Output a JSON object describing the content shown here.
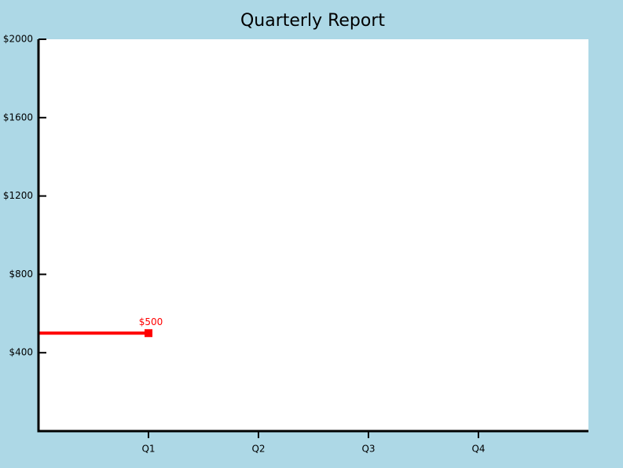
{
  "chart_data": {
    "type": "line",
    "title": "Quarterly Report",
    "categories": [
      null,
      "Q1",
      "Q2",
      "Q3",
      "Q4"
    ],
    "series": [
      {
        "color": "#ff0000",
        "values": [
          500,
          500,
          null,
          null,
          null
        ],
        "value_labels": [
          null,
          "$500",
          null,
          null,
          null
        ]
      }
    ],
    "ylim": [
      0,
      2000
    ],
    "yticks": [
      {
        "value": 400,
        "label": "$400"
      },
      {
        "value": 800,
        "label": "$800"
      },
      {
        "value": 1200,
        "label": "$1200"
      },
      {
        "value": 1600,
        "label": "$1600"
      },
      {
        "value": 2000,
        "label": "$2000"
      }
    ],
    "grid": false
  }
}
